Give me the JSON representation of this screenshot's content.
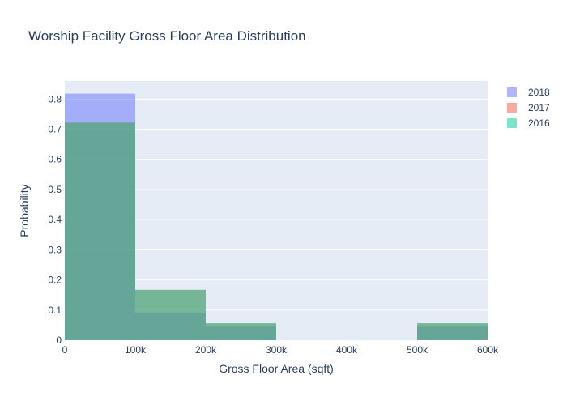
{
  "chart_data": {
    "type": "bar",
    "subtype": "histogram-overlay",
    "title": "Worship Facility Gross Floor Area Distribution",
    "xlabel": "Gross Floor Area (sqft)",
    "ylabel": "Probability",
    "xlim": [
      0,
      600000
    ],
    "ylim": [
      0,
      0.86
    ],
    "grid": true,
    "legend_position": "top-right",
    "x_ticks": [
      {
        "value": 0,
        "label": "0"
      },
      {
        "value": 100000,
        "label": "100k"
      },
      {
        "value": 200000,
        "label": "200k"
      },
      {
        "value": 300000,
        "label": "300k"
      },
      {
        "value": 400000,
        "label": "400k"
      },
      {
        "value": 500000,
        "label": "500k"
      },
      {
        "value": 600000,
        "label": "600k"
      }
    ],
    "y_ticks": [
      {
        "value": 0,
        "label": "0"
      },
      {
        "value": 0.1,
        "label": "0.1"
      },
      {
        "value": 0.2,
        "label": "0.2"
      },
      {
        "value": 0.3,
        "label": "0.3"
      },
      {
        "value": 0.4,
        "label": "0.4"
      },
      {
        "value": 0.5,
        "label": "0.5"
      },
      {
        "value": 0.6,
        "label": "0.6"
      },
      {
        "value": 0.7,
        "label": "0.7"
      },
      {
        "value": 0.8,
        "label": "0.8"
      }
    ],
    "bins": [
      {
        "start": 0,
        "end": 100000
      },
      {
        "start": 100000,
        "end": 200000
      },
      {
        "start": 200000,
        "end": 300000
      },
      {
        "start": 300000,
        "end": 400000
      },
      {
        "start": 400000,
        "end": 500000
      },
      {
        "start": 500000,
        "end": 600000
      }
    ],
    "opacity": 0.5,
    "series": [
      {
        "name": "2018",
        "color": "#636efa",
        "values": [
          0.818,
          0.091,
          0.045,
          0,
          0,
          0.045
        ]
      },
      {
        "name": "2017",
        "color": "#ef553b",
        "values": [
          0.722,
          0.167,
          0.056,
          0,
          0,
          0.056
        ]
      },
      {
        "name": "2016",
        "color": "#00cc96",
        "values": [
          0.722,
          0.167,
          0.056,
          0,
          0,
          0.056
        ]
      }
    ],
    "plot_background": "#e5ecf6",
    "gridline_color": "#ffffff",
    "text_color": "#2a3f5f"
  }
}
